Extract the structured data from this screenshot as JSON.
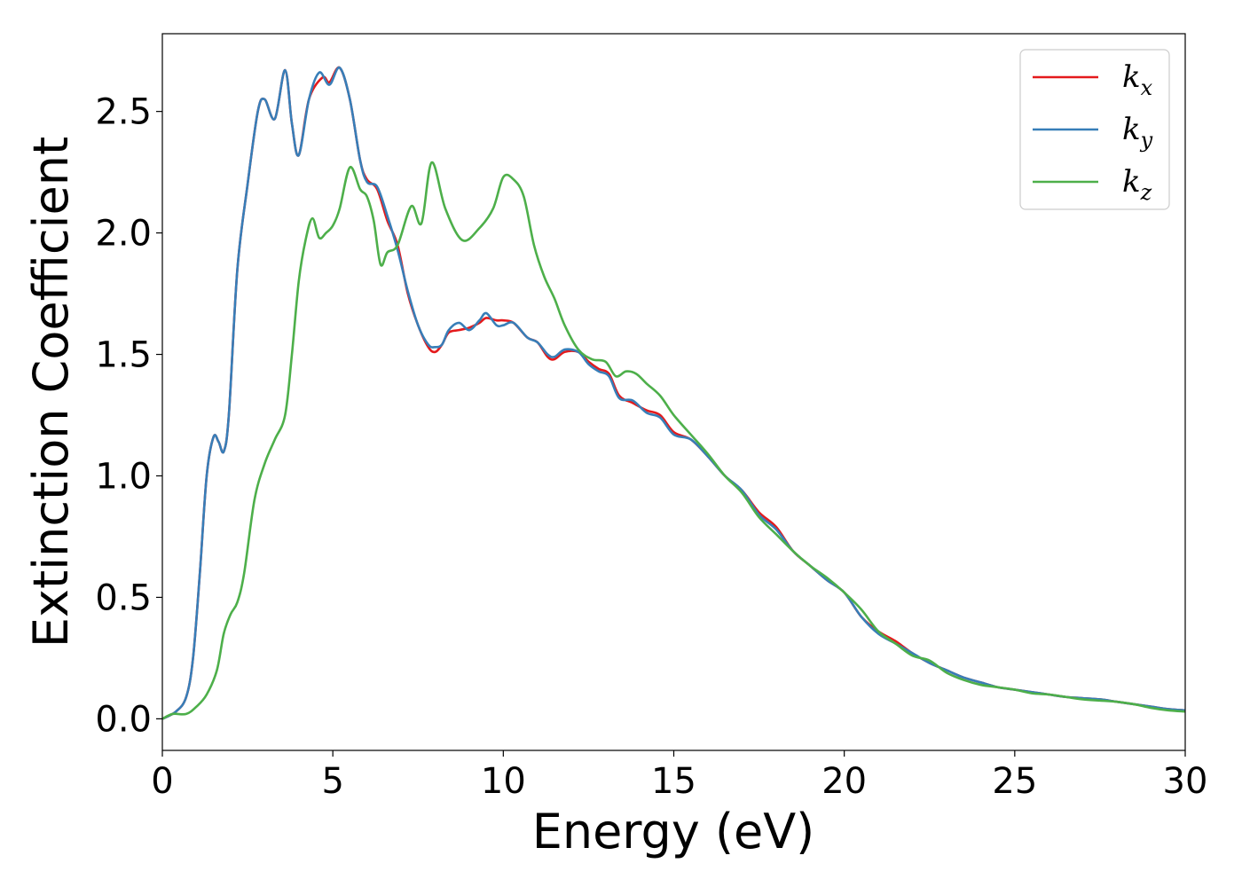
{
  "chart_data": {
    "type": "line",
    "xlabel": "Energy (eV)",
    "ylabel": "Extinction Coefficient",
    "xlim": [
      0,
      30
    ],
    "ylim": [
      -0.13,
      2.82
    ],
    "xticks": [
      0,
      5,
      10,
      15,
      20,
      25,
      30
    ],
    "xtick_labels": [
      "0",
      "5",
      "10",
      "15",
      "20",
      "25",
      "30"
    ],
    "yticks": [
      0.0,
      0.5,
      1.0,
      1.5,
      2.0,
      2.5
    ],
    "ytick_labels": [
      "0.0",
      "0.5",
      "1.0",
      "1.5",
      "2.0",
      "2.5"
    ],
    "grid": false,
    "legend_position": "top-right",
    "series": [
      {
        "name": "kx",
        "label_main": "k",
        "label_sub": "x",
        "color": "#e41a1c",
        "points": [
          [
            0,
            0
          ],
          [
            0.4,
            0.03
          ],
          [
            0.7,
            0.09
          ],
          [
            0.9,
            0.25
          ],
          [
            1.1,
            0.6
          ],
          [
            1.3,
            1.0
          ],
          [
            1.5,
            1.16
          ],
          [
            1.65,
            1.14
          ],
          [
            1.8,
            1.1
          ],
          [
            1.95,
            1.25
          ],
          [
            2.2,
            1.85
          ],
          [
            2.5,
            2.2
          ],
          [
            2.8,
            2.5
          ],
          [
            3.0,
            2.55
          ],
          [
            3.3,
            2.47
          ],
          [
            3.6,
            2.67
          ],
          [
            3.8,
            2.45
          ],
          [
            4.0,
            2.32
          ],
          [
            4.3,
            2.55
          ],
          [
            4.7,
            2.64
          ],
          [
            4.9,
            2.62
          ],
          [
            5.2,
            2.68
          ],
          [
            5.5,
            2.55
          ],
          [
            5.8,
            2.3
          ],
          [
            6.0,
            2.22
          ],
          [
            6.3,
            2.18
          ],
          [
            6.6,
            2.05
          ],
          [
            6.9,
            1.95
          ],
          [
            7.2,
            1.75
          ],
          [
            7.5,
            1.62
          ],
          [
            7.8,
            1.53
          ],
          [
            8.0,
            1.51
          ],
          [
            8.2,
            1.54
          ],
          [
            8.4,
            1.59
          ],
          [
            8.7,
            1.6
          ],
          [
            9.0,
            1.61
          ],
          [
            9.3,
            1.63
          ],
          [
            9.5,
            1.65
          ],
          [
            9.8,
            1.64
          ],
          [
            10.0,
            1.64
          ],
          [
            10.3,
            1.63
          ],
          [
            10.7,
            1.57
          ],
          [
            11.0,
            1.55
          ],
          [
            11.3,
            1.49
          ],
          [
            11.5,
            1.48
          ],
          [
            11.8,
            1.51
          ],
          [
            12.2,
            1.51
          ],
          [
            12.5,
            1.47
          ],
          [
            12.8,
            1.44
          ],
          [
            13.1,
            1.42
          ],
          [
            13.4,
            1.33
          ],
          [
            13.8,
            1.3
          ],
          [
            14.2,
            1.27
          ],
          [
            14.6,
            1.25
          ],
          [
            15.0,
            1.18
          ],
          [
            15.5,
            1.15
          ],
          [
            16.0,
            1.08
          ],
          [
            16.5,
            1.0
          ],
          [
            17.0,
            0.94
          ],
          [
            17.5,
            0.85
          ],
          [
            18.0,
            0.79
          ],
          [
            18.5,
            0.69
          ],
          [
            19.0,
            0.63
          ],
          [
            19.5,
            0.57
          ],
          [
            20.0,
            0.52
          ],
          [
            20.5,
            0.42
          ],
          [
            21.0,
            0.36
          ],
          [
            21.5,
            0.32
          ],
          [
            22.0,
            0.27
          ],
          [
            22.5,
            0.23
          ],
          [
            23.0,
            0.2
          ],
          [
            23.5,
            0.17
          ],
          [
            24.0,
            0.15
          ],
          [
            24.5,
            0.13
          ],
          [
            25.0,
            0.12
          ],
          [
            25.5,
            0.11
          ],
          [
            26.0,
            0.1
          ],
          [
            26.5,
            0.09
          ],
          [
            27.0,
            0.085
          ],
          [
            27.5,
            0.08
          ],
          [
            28.0,
            0.07
          ],
          [
            28.5,
            0.06
          ],
          [
            29.0,
            0.05
          ],
          [
            29.5,
            0.04
          ],
          [
            30.0,
            0.035
          ]
        ]
      },
      {
        "name": "ky",
        "label_main": "k",
        "label_sub": "y",
        "color": "#377eb8",
        "points": [
          [
            0,
            0
          ],
          [
            0.4,
            0.03
          ],
          [
            0.7,
            0.09
          ],
          [
            0.9,
            0.25
          ],
          [
            1.1,
            0.6
          ],
          [
            1.3,
            1.0
          ],
          [
            1.5,
            1.16
          ],
          [
            1.65,
            1.14
          ],
          [
            1.8,
            1.1
          ],
          [
            1.95,
            1.25
          ],
          [
            2.2,
            1.85
          ],
          [
            2.5,
            2.2
          ],
          [
            2.8,
            2.5
          ],
          [
            3.0,
            2.55
          ],
          [
            3.3,
            2.47
          ],
          [
            3.6,
            2.67
          ],
          [
            3.8,
            2.45
          ],
          [
            4.0,
            2.32
          ],
          [
            4.3,
            2.55
          ],
          [
            4.6,
            2.66
          ],
          [
            4.9,
            2.61
          ],
          [
            5.2,
            2.68
          ],
          [
            5.5,
            2.55
          ],
          [
            5.8,
            2.3
          ],
          [
            6.0,
            2.21
          ],
          [
            6.3,
            2.19
          ],
          [
            6.6,
            2.07
          ],
          [
            6.9,
            1.93
          ],
          [
            7.2,
            1.76
          ],
          [
            7.5,
            1.62
          ],
          [
            7.8,
            1.54
          ],
          [
            8.0,
            1.53
          ],
          [
            8.2,
            1.54
          ],
          [
            8.4,
            1.6
          ],
          [
            8.7,
            1.63
          ],
          [
            9.0,
            1.6
          ],
          [
            9.3,
            1.64
          ],
          [
            9.5,
            1.67
          ],
          [
            9.8,
            1.62
          ],
          [
            10.0,
            1.62
          ],
          [
            10.3,
            1.63
          ],
          [
            10.7,
            1.57
          ],
          [
            11.0,
            1.55
          ],
          [
            11.3,
            1.5
          ],
          [
            11.5,
            1.49
          ],
          [
            11.8,
            1.52
          ],
          [
            12.2,
            1.51
          ],
          [
            12.5,
            1.46
          ],
          [
            12.8,
            1.43
          ],
          [
            13.1,
            1.41
          ],
          [
            13.4,
            1.32
          ],
          [
            13.8,
            1.31
          ],
          [
            14.2,
            1.26
          ],
          [
            14.6,
            1.24
          ],
          [
            15.0,
            1.17
          ],
          [
            15.5,
            1.15
          ],
          [
            16.0,
            1.08
          ],
          [
            16.5,
            1.0
          ],
          [
            17.0,
            0.94
          ],
          [
            17.5,
            0.84
          ],
          [
            18.0,
            0.78
          ],
          [
            18.5,
            0.69
          ],
          [
            19.0,
            0.63
          ],
          [
            19.5,
            0.57
          ],
          [
            20.0,
            0.52
          ],
          [
            20.5,
            0.42
          ],
          [
            21.0,
            0.35
          ],
          [
            21.5,
            0.31
          ],
          [
            22.0,
            0.27
          ],
          [
            22.5,
            0.23
          ],
          [
            23.0,
            0.2
          ],
          [
            23.5,
            0.17
          ],
          [
            24.0,
            0.15
          ],
          [
            24.5,
            0.13
          ],
          [
            25.0,
            0.12
          ],
          [
            25.5,
            0.11
          ],
          [
            26.0,
            0.1
          ],
          [
            26.5,
            0.09
          ],
          [
            27.0,
            0.085
          ],
          [
            27.5,
            0.08
          ],
          [
            28.0,
            0.07
          ],
          [
            28.5,
            0.06
          ],
          [
            29.0,
            0.05
          ],
          [
            29.5,
            0.04
          ],
          [
            30.0,
            0.035
          ]
        ]
      },
      {
        "name": "kz",
        "label_main": "k",
        "label_sub": "z",
        "color": "#4daf4a",
        "points": [
          [
            0,
            0
          ],
          [
            0.3,
            0.02
          ],
          [
            0.7,
            0.02
          ],
          [
            1.0,
            0.05
          ],
          [
            1.3,
            0.1
          ],
          [
            1.6,
            0.2
          ],
          [
            1.8,
            0.35
          ],
          [
            2.0,
            0.43
          ],
          [
            2.2,
            0.48
          ],
          [
            2.4,
            0.6
          ],
          [
            2.7,
            0.9
          ],
          [
            3.0,
            1.05
          ],
          [
            3.3,
            1.15
          ],
          [
            3.6,
            1.25
          ],
          [
            3.8,
            1.5
          ],
          [
            4.0,
            1.8
          ],
          [
            4.2,
            1.97
          ],
          [
            4.4,
            2.06
          ],
          [
            4.6,
            1.98
          ],
          [
            4.8,
            2.0
          ],
          [
            5.0,
            2.03
          ],
          [
            5.2,
            2.1
          ],
          [
            5.5,
            2.27
          ],
          [
            5.8,
            2.18
          ],
          [
            6.0,
            2.15
          ],
          [
            6.2,
            2.05
          ],
          [
            6.4,
            1.87
          ],
          [
            6.6,
            1.92
          ],
          [
            6.9,
            1.95
          ],
          [
            7.3,
            2.11
          ],
          [
            7.6,
            2.04
          ],
          [
            7.9,
            2.29
          ],
          [
            8.3,
            2.1
          ],
          [
            8.8,
            1.97
          ],
          [
            9.3,
            2.02
          ],
          [
            9.7,
            2.1
          ],
          [
            10.0,
            2.23
          ],
          [
            10.3,
            2.22
          ],
          [
            10.6,
            2.15
          ],
          [
            10.9,
            1.95
          ],
          [
            11.2,
            1.82
          ],
          [
            11.5,
            1.73
          ],
          [
            11.8,
            1.62
          ],
          [
            12.2,
            1.52
          ],
          [
            12.6,
            1.48
          ],
          [
            13.0,
            1.47
          ],
          [
            13.3,
            1.41
          ],
          [
            13.6,
            1.43
          ],
          [
            13.9,
            1.42
          ],
          [
            14.2,
            1.38
          ],
          [
            14.6,
            1.33
          ],
          [
            15.0,
            1.25
          ],
          [
            15.5,
            1.17
          ],
          [
            16.0,
            1.09
          ],
          [
            16.5,
            1.0
          ],
          [
            17.0,
            0.93
          ],
          [
            17.5,
            0.83
          ],
          [
            18.0,
            0.76
          ],
          [
            18.5,
            0.69
          ],
          [
            19.0,
            0.63
          ],
          [
            19.5,
            0.58
          ],
          [
            20.0,
            0.52
          ],
          [
            20.5,
            0.45
          ],
          [
            21.0,
            0.36
          ],
          [
            21.5,
            0.31
          ],
          [
            22.0,
            0.26
          ],
          [
            22.5,
            0.24
          ],
          [
            23.0,
            0.19
          ],
          [
            23.5,
            0.16
          ],
          [
            24.0,
            0.14
          ],
          [
            24.5,
            0.13
          ],
          [
            25.0,
            0.12
          ],
          [
            25.5,
            0.105
          ],
          [
            26.0,
            0.1
          ],
          [
            26.5,
            0.09
          ],
          [
            27.0,
            0.08
          ],
          [
            27.5,
            0.075
          ],
          [
            28.0,
            0.07
          ],
          [
            28.5,
            0.06
          ],
          [
            29.0,
            0.045
          ],
          [
            29.5,
            0.035
          ],
          [
            30.0,
            0.03
          ]
        ]
      }
    ]
  }
}
